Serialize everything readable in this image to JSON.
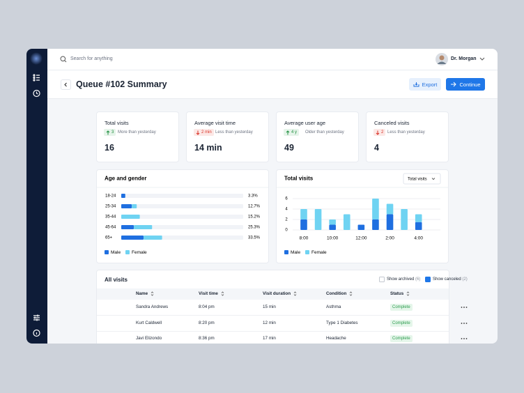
{
  "search": {
    "placeholder": "Search for anything"
  },
  "user": {
    "name": "Dr. Morgan"
  },
  "header": {
    "title": "Queue #102 Summary",
    "export": "Export",
    "continue": "Continue"
  },
  "stats": [
    {
      "label": "Total visits",
      "direction": "up",
      "delta": 3,
      "note": "More than yesterday",
      "value": 16
    },
    {
      "label": "Average visit time",
      "direction": "down",
      "delta": "2 min",
      "note": "Less than yesterday",
      "value": "14 min"
    },
    {
      "label": "Average user age",
      "direction": "up",
      "delta": "4 y",
      "note": "Older than yesterday",
      "value": 49
    },
    {
      "label": "Canceled visits",
      "direction": "down",
      "delta": 2,
      "note": "Less than yesterday",
      "value": 4
    }
  ],
  "chart_data": [
    {
      "type": "bar",
      "orientation": "horizontal",
      "stacked": true,
      "title": "Age and gender",
      "categories": [
        "18-24",
        "25-34",
        "35-44",
        "45-64",
        "65+"
      ],
      "series": [
        {
          "name": "Male",
          "color": "#1f6fe0",
          "values": [
            3.3,
            8.6,
            0,
            10.3,
            18.3
          ]
        },
        {
          "name": "Female",
          "color": "#6fd3f2",
          "values": [
            0,
            4.1,
            15.2,
            15,
            15.2
          ]
        }
      ],
      "values": [
        3.3,
        12.7,
        15.2,
        25.3,
        33.5
      ],
      "value_labels": [
        "3.3%",
        "12.7%",
        "15.2%",
        "25.3%",
        "33.5%"
      ],
      "xlim": [
        0,
        100
      ]
    },
    {
      "type": "bar",
      "orientation": "vertical",
      "stacked": true,
      "title": "Total visits",
      "selector": "Total visits",
      "categories": [
        "8:00",
        null,
        "10:00",
        null,
        "12:00",
        null,
        "2:00",
        null,
        "4:00"
      ],
      "series": [
        {
          "name": "Male",
          "color": "#1f6fe0",
          "values": [
            2,
            0,
            1,
            0,
            1,
            2,
            3,
            0,
            1.5
          ]
        },
        {
          "name": "Female",
          "color": "#6fd3f2",
          "values": [
            2,
            4,
            1,
            3,
            0,
            4,
            2,
            4,
            1.5
          ]
        }
      ],
      "ylim": [
        0,
        6
      ],
      "yticks": [
        0,
        2,
        4,
        6
      ],
      "grid": true
    }
  ],
  "table": {
    "title": "All visits",
    "filters": [
      {
        "label": "Show archived",
        "count": "(6)",
        "checked": false
      },
      {
        "label": "Show canceled",
        "count": "(2)",
        "checked": true
      }
    ],
    "columns": [
      "Name",
      "Visit time",
      "Visit duration",
      "Condition",
      "Status"
    ],
    "rows": [
      [
        "Sandra Andrews",
        "8:04 pm",
        "15 min",
        "Asthma",
        "Complete"
      ],
      [
        "Kurt Caldwell",
        "8:20 pm",
        "12 min",
        "Type 1 Diabetes",
        "Complete"
      ],
      [
        "Javi Elizondo",
        "8:36 pm",
        "17 min",
        "Headache",
        "Complete"
      ]
    ]
  }
}
